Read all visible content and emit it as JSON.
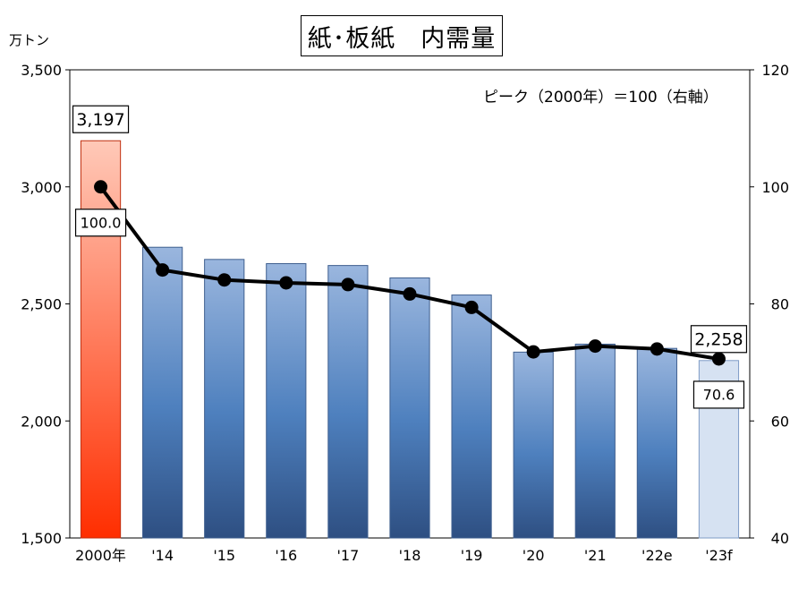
{
  "chart_data": {
    "type": "bar",
    "title": "紙･板紙　内需量",
    "y_unit": "万トン",
    "note": "ピーク（2000年）＝100（右軸）",
    "categories": [
      "2000年",
      "'14",
      "'15",
      "'16",
      "'17",
      "'18",
      "'19",
      "'20",
      "'21",
      "'22e",
      "'23f"
    ],
    "series": [
      {
        "values": [
          3197,
          2742,
          2690,
          2672,
          2664,
          2611,
          2538,
          2294,
          2328,
          2310,
          2258
        ],
        "axis": "left"
      },
      {
        "values": [
          100.0,
          85.8,
          84.1,
          83.6,
          83.3,
          81.7,
          79.4,
          71.8,
          72.8,
          72.3,
          70.6
        ],
        "axis": "right"
      }
    ],
    "ylim_left": [
      1500,
      3500
    ],
    "yticks_left": [
      1500,
      2000,
      2500,
      3000,
      3500
    ],
    "ytick_labels_left": [
      "1,500",
      "2,000",
      "2,500",
      "3,000",
      "3,500"
    ],
    "ylim_right": [
      40,
      120
    ],
    "yticks_right": [
      40,
      60,
      80,
      100,
      120
    ],
    "ytick_labels_right": [
      "40",
      "60",
      "80",
      "100",
      "120"
    ],
    "bar_annotations": [
      {
        "index": 0,
        "label": "3,197"
      },
      {
        "index": 10,
        "label": "2,258"
      }
    ],
    "line_annotations": [
      {
        "index": 0,
        "label": "100.0"
      },
      {
        "index": 10,
        "label": "70.6"
      }
    ],
    "colors": {
      "bar_2000_top": "#FFC9B8",
      "bar_2000_bottom": "#FF2E00",
      "bar_top": "#9AB6DE",
      "bar_mid": "#4E80BE",
      "bar_bottom": "#2E4F82",
      "bar_forecast": "#D6E2F2",
      "line": "#000000"
    },
    "grid": false
  }
}
